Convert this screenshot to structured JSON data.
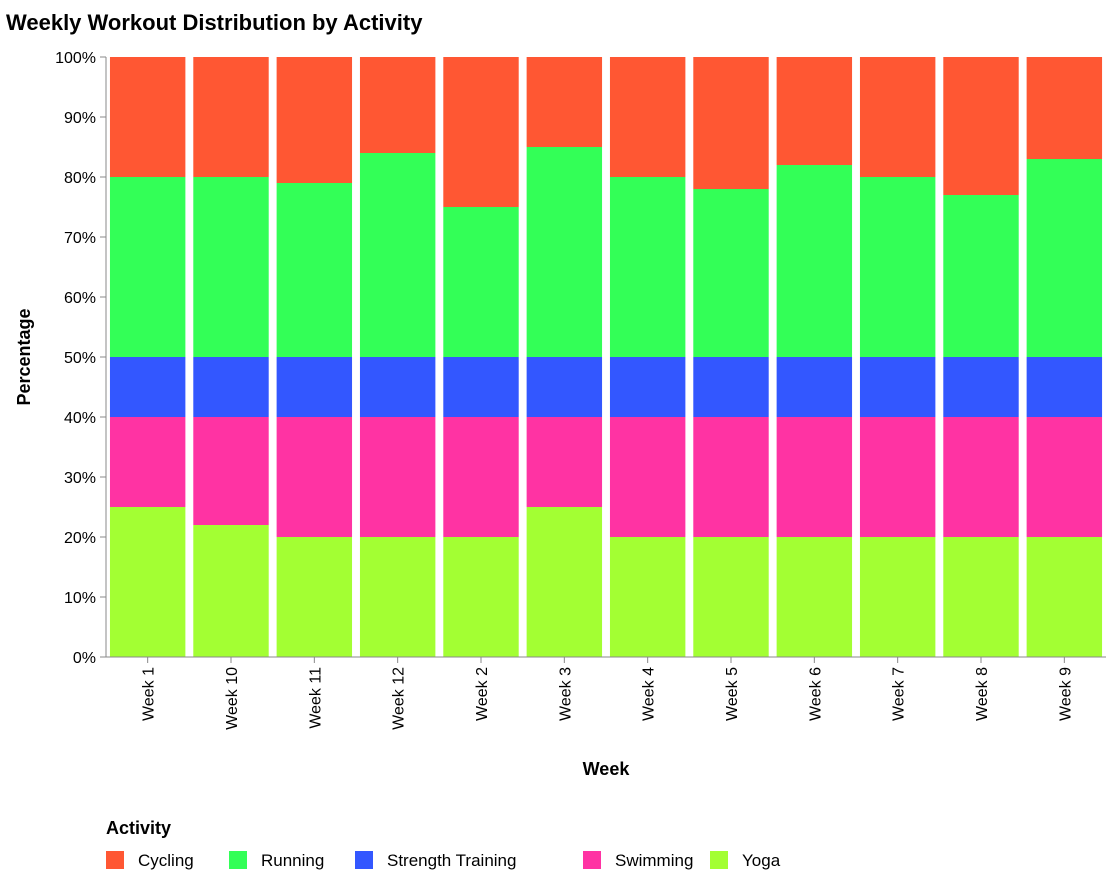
{
  "chart_data": {
    "type": "bar",
    "stacked": true,
    "normalized": true,
    "title": "Weekly Workout Distribution by Activity",
    "xlabel": "Week",
    "ylabel": "Percentage",
    "ylim": [
      0,
      100
    ],
    "yticks": [
      "0%",
      "10%",
      "20%",
      "30%",
      "40%",
      "50%",
      "60%",
      "70%",
      "80%",
      "90%",
      "100%"
    ],
    "categories": [
      "Week 1",
      "Week 10",
      "Week 11",
      "Week 12",
      "Week 2",
      "Week 3",
      "Week 4",
      "Week 5",
      "Week 6",
      "Week 7",
      "Week 8",
      "Week 9"
    ],
    "legend_title": "Activity",
    "legend_position": "bottom-left",
    "series": [
      {
        "name": "Yoga",
        "color": "#a3ff33",
        "values": [
          25,
          22,
          20,
          20,
          20,
          25,
          20,
          20,
          20,
          20,
          20,
          20
        ]
      },
      {
        "name": "Swimming",
        "color": "#ff33a3",
        "values": [
          15,
          18,
          20,
          20,
          20,
          15,
          20,
          20,
          20,
          20,
          20,
          20
        ]
      },
      {
        "name": "Strength Training",
        "color": "#3357ff",
        "values": [
          10,
          10,
          10,
          10,
          10,
          10,
          10,
          10,
          10,
          10,
          10,
          10
        ]
      },
      {
        "name": "Running",
        "color": "#33ff57",
        "values": [
          30,
          30,
          29,
          34,
          25,
          35,
          30,
          28,
          32,
          30,
          27,
          33
        ]
      },
      {
        "name": "Cycling",
        "color": "#ff5733",
        "values": [
          20,
          20,
          21,
          16,
          25,
          15,
          20,
          22,
          18,
          20,
          23,
          17
        ]
      }
    ],
    "legend_order": [
      "Cycling",
      "Running",
      "Strength Training",
      "Swimming",
      "Yoga"
    ],
    "axis_color": "#888888",
    "grid": false
  }
}
